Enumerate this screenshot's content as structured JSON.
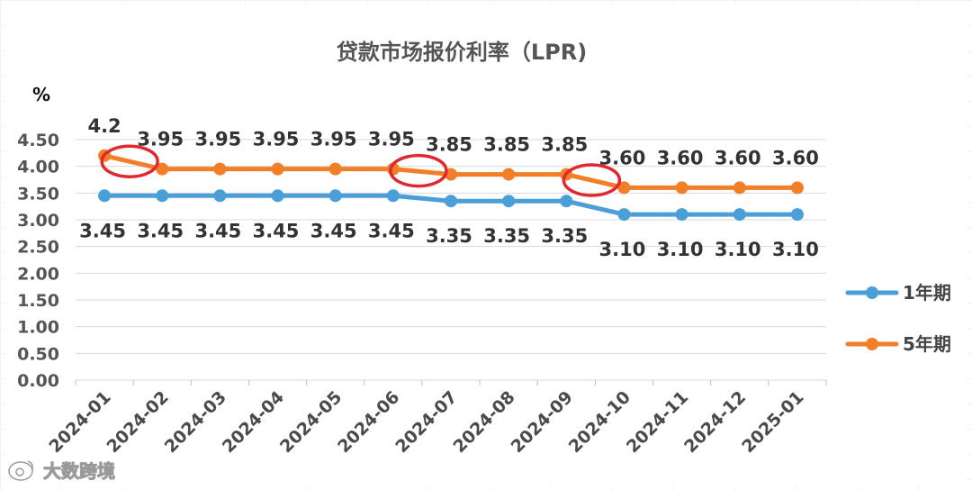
{
  "chart_data": {
    "type": "line",
    "title": "贷款市场报价利率（LPR)",
    "ylabel": "%",
    "xlabel": "",
    "ylim": [
      0,
      4.5
    ],
    "yticks": [
      "0.00",
      "0.50",
      "1.00",
      "1.50",
      "2.00",
      "2.50",
      "3.00",
      "3.50",
      "4.00",
      "4.50"
    ],
    "categories": [
      "2024-01",
      "2024-02",
      "2024-03",
      "2024-04",
      "2024-05",
      "2024-06",
      "2024-07",
      "2024-08",
      "2024-09",
      "2024-10",
      "2024-11",
      "2024-12",
      "2025-01"
    ],
    "series": [
      {
        "name": "1年期",
        "color": "#4a9fd8",
        "values": [
          3.45,
          3.45,
          3.45,
          3.45,
          3.45,
          3.45,
          3.35,
          3.35,
          3.35,
          3.1,
          3.1,
          3.1,
          3.1
        ],
        "labels": [
          "3.45",
          "3.45",
          "3.45",
          "3.45",
          "3.45",
          "3.45",
          "3.35",
          "3.35",
          "3.35",
          "3.10",
          "3.10",
          "3.10",
          "3.10"
        ]
      },
      {
        "name": "5年期",
        "color": "#f27e27",
        "values": [
          4.2,
          3.95,
          3.95,
          3.95,
          3.95,
          3.95,
          3.85,
          3.85,
          3.85,
          3.6,
          3.6,
          3.6,
          3.6
        ],
        "labels": [
          "4.2",
          "3.95",
          "3.95",
          "3.95",
          "3.95",
          "3.95",
          "3.85",
          "3.85",
          "3.85",
          "3.60",
          "3.60",
          "3.60",
          "3.60"
        ]
      }
    ],
    "grid": true,
    "legend_position": "right",
    "annotations": {
      "highlight_ellipses_color": "#e0282e",
      "highlight_after_index": [
        0,
        5,
        8
      ]
    }
  },
  "watermark": {
    "icon": "weibo-icon",
    "text": "大数跨境"
  }
}
